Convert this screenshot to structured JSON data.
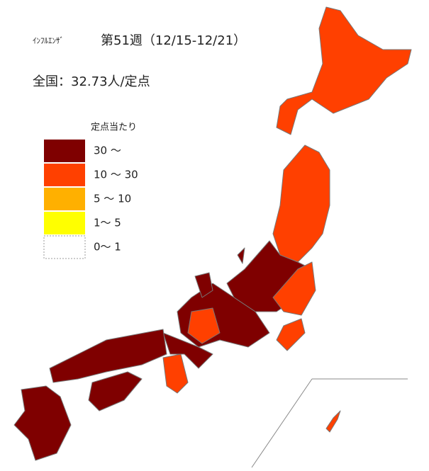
{
  "header": {
    "prefix": "ｲﾝﾌﾙｴﾝｻﾞ",
    "title": "第51週（12/15-12/21）",
    "national": "全国：32.73人/定点"
  },
  "legend": {
    "title": "定点当たり",
    "items": [
      {
        "label": "30 ～",
        "color": "#7f0000"
      },
      {
        "label": "10 ～ 30",
        "color": "#ff4000"
      },
      {
        "label": "5 ～ 10",
        "color": "#ffb000"
      },
      {
        "label": "1～ 5",
        "color": "#ffff00"
      },
      {
        "label": "0～ 1",
        "color": "#ffffff"
      }
    ]
  }
}
